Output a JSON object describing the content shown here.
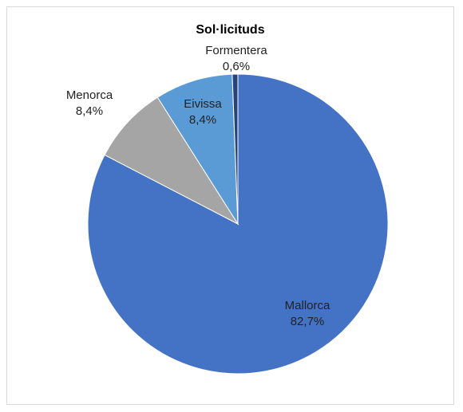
{
  "chart_data": {
    "type": "pie",
    "title": "Sol·licituds",
    "slices": [
      {
        "name": "Mallorca",
        "value": 82.7,
        "label": "82,7%",
        "color": "#4472c4"
      },
      {
        "name": "Menorca",
        "value": 8.4,
        "label": "8,4%",
        "color": "#a5a5a5"
      },
      {
        "name": "Eivissa",
        "value": 8.4,
        "label": "8,4%",
        "color": "#5b9bd5"
      },
      {
        "name": "Formentera",
        "value": 0.6,
        "label": "0,6%",
        "color": "#264478"
      }
    ],
    "start_angle_deg": 0,
    "direction": "counterclockwise-from-top",
    "legend": "none"
  }
}
